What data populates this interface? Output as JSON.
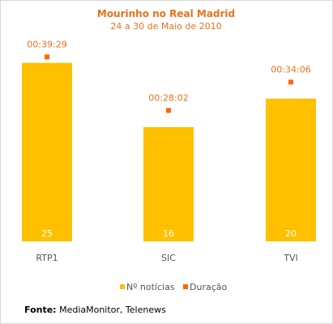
{
  "colors": {
    "accent": "#e8711b",
    "bar": "#ffc000",
    "duration_marker": "#ff6600",
    "axis_text": "#555555"
  },
  "chart_data": {
    "type": "bar",
    "title": "Mourinho no Real Madrid",
    "subtitle": "24 a 30 de Maio de 2010",
    "categories": [
      "RTP1",
      "SIC",
      "TVI"
    ],
    "series": [
      {
        "name": "Nº notícias",
        "type": "bar",
        "values": [
          25,
          16,
          20
        ]
      },
      {
        "name": "Duração",
        "type": "scatter",
        "values": [
          "00:39:29",
          "00:28:02",
          "00:34:06"
        ],
        "seconds": [
          2369,
          1682,
          2046
        ]
      }
    ],
    "ylim": [
      0,
      29.5
    ],
    "ylim_duration_seconds": [
      0,
      2705
    ],
    "grid": false,
    "legend": "bottom"
  },
  "source": {
    "label": "Fonte:",
    "text": " MediaMonitor, Telenews"
  }
}
